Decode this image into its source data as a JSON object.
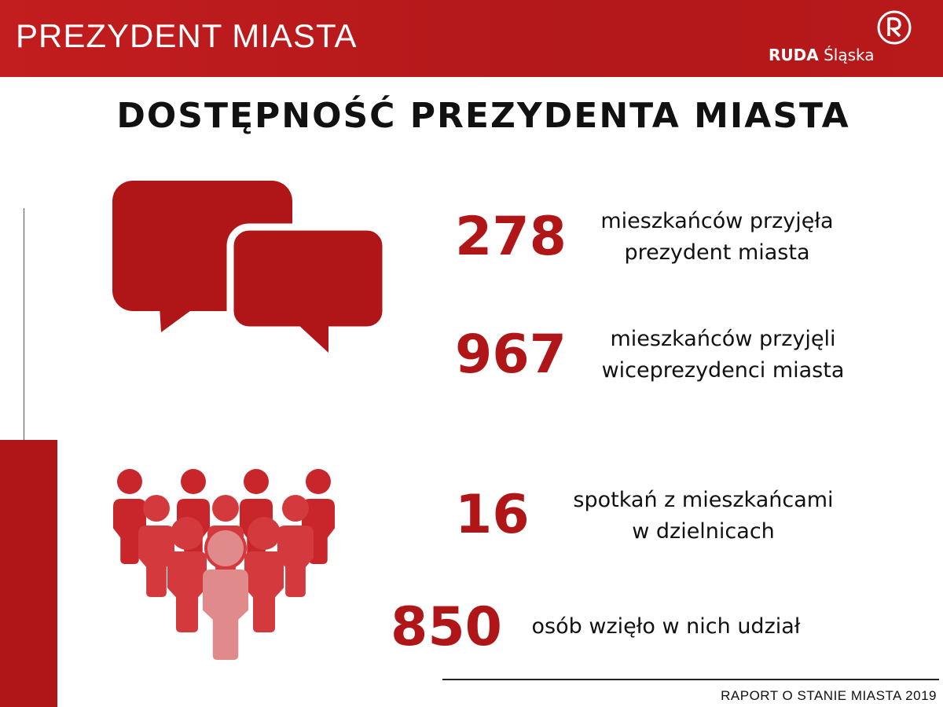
{
  "header": {
    "title": "PREZYDENT MIASTA",
    "logo": {
      "bold": "RUDA",
      "light": "Śląska"
    }
  },
  "page_title": "DOSTĘPNOŚĆ PREZYDENTA MIASTA",
  "stats": [
    {
      "value": "278",
      "line1": "mieszkańców przyjęła",
      "line2": "prezydent miasta"
    },
    {
      "value": "967",
      "line1": "mieszkańców przyjęli",
      "line2": "wiceprezydenci miasta"
    },
    {
      "value": "16",
      "line1": "spotkań z mieszkańcami",
      "line2": "w dzielnicach"
    },
    {
      "value": "850",
      "line1": "osób wzięło w nich udział",
      "line2": ""
    }
  ],
  "footer": "RAPORT O STANIE MIASTA 2019",
  "icons": {
    "top": "speech-bubbles-icon",
    "bottom": "people-crowd-icon"
  },
  "colors": {
    "brand_red": "#b01618",
    "people_dark": "#c8262a",
    "people_mid": "#d43a3d",
    "people_light": "#e08a8c"
  }
}
